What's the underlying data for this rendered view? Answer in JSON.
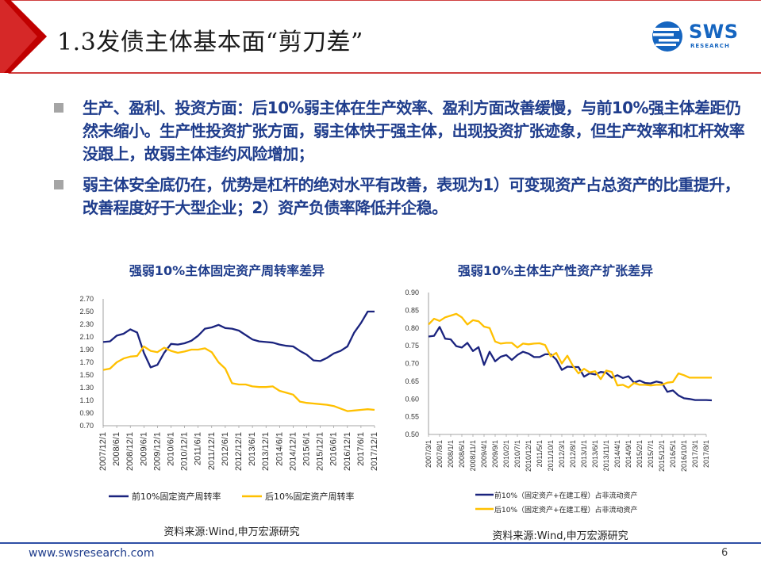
{
  "header": {
    "title": "1.3发债主体基本面“剪刀差”",
    "logo_text": "SWS",
    "logo_sub": "RESEARCH",
    "logo_icon": "sws-logo-icon",
    "accent_color": "#c00000"
  },
  "bullets": [
    "生产、盈利、投资方面：后10%弱主体在生产效率、盈利方面改善缓慢，与前10%强主体差距仍然未缩小。生产性投资扩张方面，弱主体快于强主体，出现投资扩张迹象，但生产效率和杠杆效率没跟上，故弱主体违约风险增加；",
    "弱主体安全底仍在，优势是杠杆的绝对水平有改善，表现为1）可变现资产占总资产的比重提升，改善程度好于大型企业；2）资产负债率降低并企稳。"
  ],
  "footer": {
    "url": "www.swsresearch.com",
    "page": "6"
  },
  "chart_data": [
    {
      "type": "line",
      "title": "强弱10%主体固定资产周转率差异",
      "source": "资料来源:Wind,申万宏源研究",
      "ylim": [
        0.7,
        2.7
      ],
      "yticks": [
        "2.70",
        "2.50",
        "2.30",
        "2.10",
        "1.90",
        "1.70",
        "1.50",
        "1.30",
        "1.10",
        "0.90",
        "0.70"
      ],
      "categories": [
        "2007/12/1",
        "2008/6/1",
        "2008/12/1",
        "2009/6/1",
        "2009/12/1",
        "2010/6/1",
        "2010/12/1",
        "2011/6/1",
        "2011/12/1",
        "2012/6/1",
        "2012/12/1",
        "2013/6/1",
        "2013/12/1",
        "2014/6/1",
        "2014/12/1",
        "2015/6/1",
        "2015/12/1",
        "2016/6/1",
        "2016/12/1",
        "2017/6/1",
        "2017/12/1"
      ],
      "x": [
        0,
        0.5,
        1,
        1.5,
        2,
        2.5,
        3,
        3.5,
        4,
        4.5,
        5,
        5.5,
        6,
        6.5,
        7,
        7.5,
        8,
        8.5,
        9,
        9.5,
        10,
        10.5,
        11,
        11.5,
        12,
        12.5,
        13,
        13.5,
        14,
        14.5,
        15,
        15.5,
        16,
        16.5,
        17,
        17.5,
        18,
        18.5,
        19,
        19.5,
        20
      ],
      "grid": false,
      "legend_position": "bottom",
      "series": [
        {
          "name": "前10%固定资产周转率",
          "color": "#1a237e",
          "values": [
            2.02,
            2.03,
            2.12,
            2.15,
            2.22,
            2.17,
            1.85,
            1.62,
            1.66,
            1.85,
            1.99,
            1.98,
            2.0,
            2.04,
            2.12,
            2.23,
            2.25,
            2.29,
            2.24,
            2.23,
            2.2,
            2.13,
            2.06,
            2.03,
            2.02,
            2.01,
            1.98,
            1.96,
            1.95,
            1.88,
            1.82,
            1.73,
            1.72,
            1.77,
            1.84,
            1.88,
            1.95,
            2.17,
            2.32,
            2.5,
            2.5
          ]
        },
        {
          "name": "后10%固定资产周转率",
          "color": "#ffc000",
          "values": [
            1.58,
            1.6,
            1.7,
            1.76,
            1.79,
            1.8,
            1.95,
            1.88,
            1.86,
            1.93,
            1.88,
            1.85,
            1.87,
            1.9,
            1.9,
            1.92,
            1.86,
            1.7,
            1.6,
            1.37,
            1.35,
            1.35,
            1.32,
            1.31,
            1.31,
            1.32,
            1.25,
            1.22,
            1.19,
            1.08,
            1.06,
            1.05,
            1.04,
            1.03,
            1.01,
            0.97,
            0.93,
            0.94,
            0.95,
            0.96,
            0.95
          ]
        }
      ]
    },
    {
      "type": "line",
      "title": "强弱10%主体生产性资产扩张差异",
      "source": "资料来源:Wind,申万宏源研究",
      "ylim": [
        0.5,
        0.9
      ],
      "yticks": [
        "0.90",
        "0.85",
        "0.80",
        "0.75",
        "0.70",
        "0.65",
        "0.60",
        "0.55",
        "0.50"
      ],
      "categories": [
        "2007/3/1",
        "2007/8/1",
        "2008/1/1",
        "2008/6/1",
        "2008/11/1",
        "2009/4/1",
        "2009/9/1",
        "2010/2/1",
        "2010/7/1",
        "2010/12/1",
        "2011/5/1",
        "2011/10/1",
        "2012/3/1",
        "2012/8/1",
        "2013/1/1",
        "2013/6/1",
        "2013/11/1",
        "2014/4/1",
        "2014/9/1",
        "2015/2/1",
        "2015/7/1",
        "2015/12/1",
        "2016/5/1",
        "2016/10/1",
        "2017/3/1",
        "2017/8/1"
      ],
      "x": [
        0,
        0.5,
        1,
        1.5,
        2,
        2.5,
        3,
        3.5,
        4,
        4.5,
        5,
        5.5,
        6,
        6.5,
        7,
        7.5,
        8,
        8.5,
        9,
        9.5,
        10,
        10.5,
        11,
        11.5,
        12,
        12.5,
        13,
        13.5,
        14,
        14.5,
        15,
        15.5,
        16,
        16.5,
        17,
        17.5,
        18,
        18.5,
        19,
        19.5,
        20,
        20.5,
        21,
        21.5,
        22,
        22.5,
        23,
        23.5,
        24,
        24.5,
        25,
        25.5
      ],
      "grid": false,
      "legend_position": "bottom",
      "series": [
        {
          "name": "前10%（固定资产+在建工程）占非流动资产",
          "color": "#1a237e",
          "values": [
            0.776,
            0.778,
            0.803,
            0.77,
            0.768,
            0.749,
            0.745,
            0.758,
            0.735,
            0.746,
            0.696,
            0.733,
            0.706,
            0.719,
            0.724,
            0.71,
            0.724,
            0.733,
            0.728,
            0.718,
            0.718,
            0.726,
            0.726,
            0.711,
            0.682,
            0.691,
            0.69,
            0.69,
            0.663,
            0.672,
            0.669,
            0.676,
            0.674,
            0.66,
            0.667,
            0.659,
            0.664,
            0.646,
            0.652,
            0.645,
            0.644,
            0.649,
            0.646,
            0.62,
            0.624,
            0.61,
            0.602,
            0.6,
            0.597,
            0.597,
            0.597,
            0.596
          ]
        },
        {
          "name": "后10%（固定资产+在建工程）占非流动资产",
          "color": "#ffc000",
          "values": [
            0.81,
            0.826,
            0.82,
            0.83,
            0.835,
            0.84,
            0.83,
            0.81,
            0.822,
            0.819,
            0.804,
            0.8,
            0.762,
            0.756,
            0.758,
            0.758,
            0.745,
            0.756,
            0.754,
            0.756,
            0.757,
            0.752,
            0.72,
            0.73,
            0.7,
            0.722,
            0.693,
            0.672,
            0.685,
            0.675,
            0.678,
            0.656,
            0.68,
            0.676,
            0.638,
            0.64,
            0.632,
            0.645,
            0.64,
            0.64,
            0.638,
            0.64,
            0.64,
            0.646,
            0.648,
            0.672,
            0.667,
            0.66,
            0.66,
            0.66,
            0.66,
            0.66
          ]
        }
      ]
    }
  ]
}
